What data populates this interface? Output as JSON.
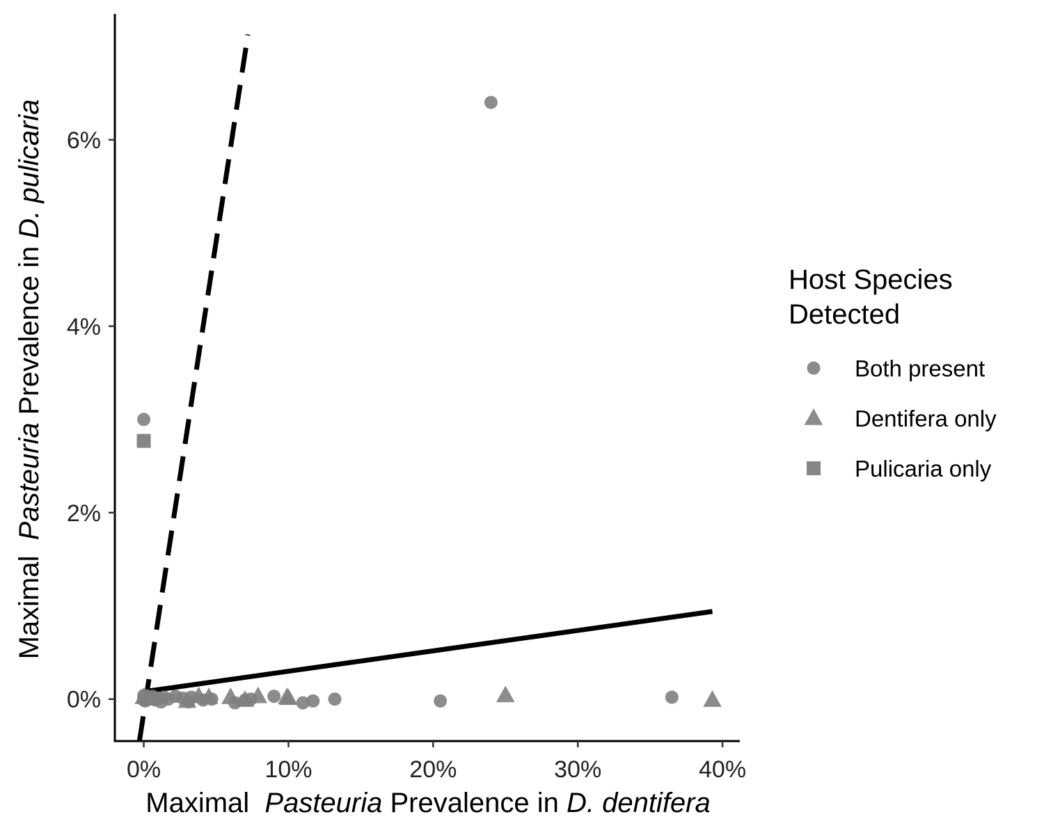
{
  "chart_data": {
    "type": "scatter",
    "xlabel": {
      "parts": [
        {
          "text": "Maximal  ",
          "italic": false
        },
        {
          "text": "Pasteuria",
          "italic": true
        },
        {
          "text": " Prevalence in ",
          "italic": false
        },
        {
          "text": "D. dentifera",
          "italic": true
        }
      ]
    },
    "ylabel": {
      "parts": [
        {
          "text": "Maximal  ",
          "italic": false
        },
        {
          "text": "Pasteuria",
          "italic": true
        },
        {
          "text": " Prevalence in ",
          "italic": false
        },
        {
          "text": "D. pulicaria",
          "italic": true
        }
      ]
    },
    "xlim": [
      -0.02,
      0.412
    ],
    "ylim": [
      -0.0045,
      0.0735
    ],
    "x_ticks": [
      {
        "value": 0,
        "label": "0%"
      },
      {
        "value": 0.1,
        "label": "10%"
      },
      {
        "value": 0.2,
        "label": "20%"
      },
      {
        "value": 0.3,
        "label": "30%"
      },
      {
        "value": 0.4,
        "label": "40%"
      }
    ],
    "y_ticks": [
      {
        "value": 0,
        "label": "0%"
      },
      {
        "value": 0.02,
        "label": "2%"
      },
      {
        "value": 0.04,
        "label": "4%"
      },
      {
        "value": 0.06,
        "label": "6%"
      }
    ],
    "grid": false,
    "legend": {
      "title": [
        "Host Species",
        "Detected"
      ],
      "position": "right",
      "entries": [
        {
          "label": "Both present",
          "shape": "circle"
        },
        {
          "label": "Dentifera only",
          "shape": "triangle"
        },
        {
          "label": "Pulicaria only",
          "shape": "square"
        }
      ]
    },
    "point_color": "#808080",
    "line_color": "#000000",
    "series": [
      {
        "name": "Both present",
        "shape": "circle",
        "points": [
          {
            "x": 0.0,
            "y": 0.03
          },
          {
            "x": 0.24,
            "y": 0.064
          },
          {
            "x": 0.365,
            "y": 0.0002
          },
          {
            "x": 0.205,
            "y": -0.0002
          },
          {
            "x": 0.132,
            "y": 0.0
          },
          {
            "x": 0.117,
            "y": -0.0002
          },
          {
            "x": 0.11,
            "y": -0.0004
          },
          {
            "x": 0.09,
            "y": 0.0003
          },
          {
            "x": 0.074,
            "y": 0.0
          },
          {
            "x": 0.07,
            "y": -0.0001
          },
          {
            "x": 0.063,
            "y": -0.0004
          },
          {
            "x": 0.047,
            "y": 0.0
          },
          {
            "x": 0.041,
            "y": -0.0001
          },
          {
            "x": 0.033,
            "y": 0.0002
          },
          {
            "x": 0.031,
            "y": -0.0003
          },
          {
            "x": 0.027,
            "y": 0.0001
          },
          {
            "x": 0.022,
            "y": 0.0003
          },
          {
            "x": 0.017,
            "y": 0.0
          },
          {
            "x": 0.014,
            "y": 0.0002
          },
          {
            "x": 0.012,
            "y": -0.0003
          },
          {
            "x": 0.01,
            "y": 0.0001
          },
          {
            "x": 0.008,
            "y": -0.0001
          },
          {
            "x": 0.006,
            "y": 0.0003
          },
          {
            "x": 0.004,
            "y": 0.0
          },
          {
            "x": 0.002,
            "y": 0.0002
          },
          {
            "x": 0.001,
            "y": -0.0002
          },
          {
            "x": 0.0,
            "y": 0.0001
          },
          {
            "x": 0.0,
            "y": 0.0004
          },
          {
            "x": 0.0,
            "y": -0.0001
          }
        ]
      },
      {
        "name": "Dentifera only",
        "shape": "triangle",
        "points": [
          {
            "x": 0.25,
            "y": 0.0004
          },
          {
            "x": 0.393,
            "y": -0.0001
          },
          {
            "x": 0.099,
            "y": 0.0002
          },
          {
            "x": 0.1,
            "y": 0.0001
          },
          {
            "x": 0.079,
            "y": 0.0003
          },
          {
            "x": 0.07,
            "y": -0.0001
          },
          {
            "x": 0.06,
            "y": 0.0002
          },
          {
            "x": 0.045,
            "y": 0.0002
          },
          {
            "x": 0.038,
            "y": 0.0003
          },
          {
            "x": 0.03,
            "y": -0.0002
          },
          {
            "x": 0.003,
            "y": 0.0001
          },
          {
            "x": 0.0,
            "y": 0.0002
          }
        ]
      },
      {
        "name": "Pulicaria only",
        "shape": "square",
        "points": [
          {
            "x": 0.0,
            "y": 0.0277
          }
        ]
      }
    ],
    "lines": [
      {
        "name": "dashed",
        "style": "dashed",
        "x": [
          -0.003,
          0.072
        ],
        "y": [
          -0.0045,
          0.0713
        ]
      },
      {
        "name": "solid",
        "style": "solid",
        "x": [
          0.0,
          0.393
        ],
        "y": [
          0.0008,
          0.0094
        ]
      }
    ]
  }
}
